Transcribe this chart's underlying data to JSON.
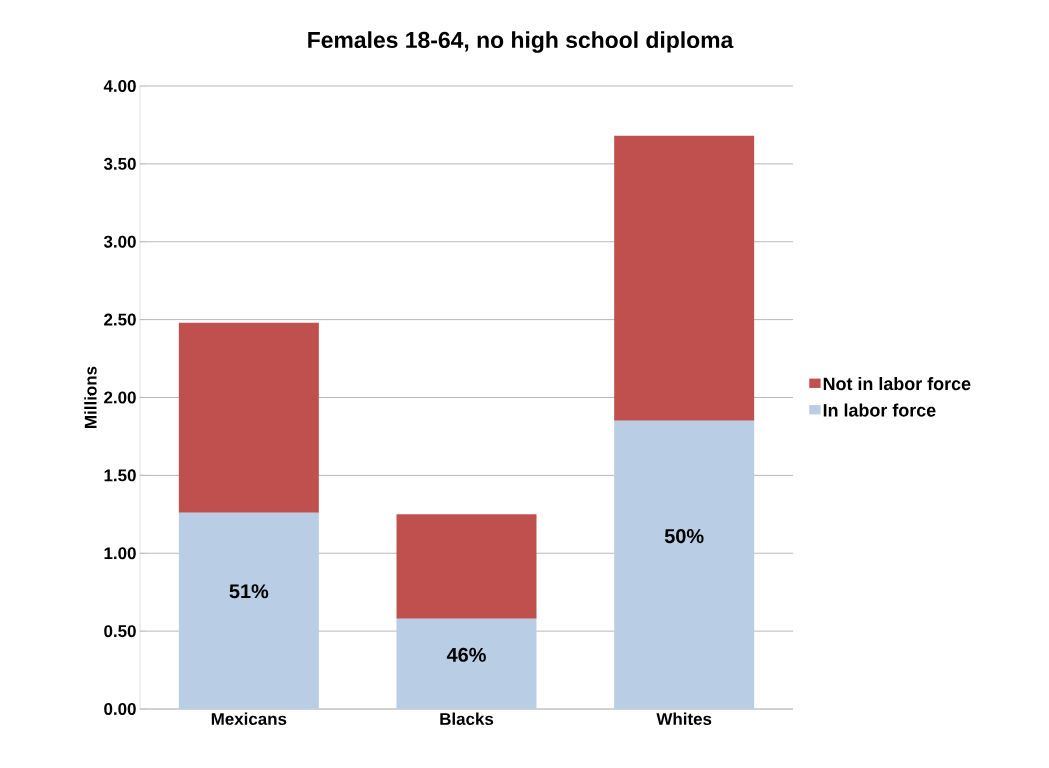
{
  "chart_data": {
    "type": "bar",
    "stacked": true,
    "title": "Females 18-64, no high school diploma",
    "ylabel": "Millions",
    "categories": [
      "Mexicans",
      "Blacks",
      "Whites"
    ],
    "series": [
      {
        "name": "In labor force",
        "color": "#b9cde5",
        "values": [
          1.26,
          0.58,
          1.85
        ]
      },
      {
        "name": "Not in labor force",
        "color": "#c0504d",
        "values": [
          1.22,
          0.67,
          1.83
        ]
      }
    ],
    "ylim": [
      0,
      4
    ],
    "yticks": [
      {
        "value": 0,
        "label": "0.00"
      },
      {
        "value": 0.5,
        "label": "0.50"
      },
      {
        "value": 1,
        "label": "1.00"
      },
      {
        "value": 1.5,
        "label": "1.50"
      },
      {
        "value": 2,
        "label": "2.00"
      },
      {
        "value": 2.5,
        "label": "2.50"
      },
      {
        "value": 3,
        "label": "3.00"
      },
      {
        "value": 3.5,
        "label": "3.50"
      },
      {
        "value": 4,
        "label": "4.00"
      }
    ],
    "grid": "y",
    "legend": "right",
    "annotations": [
      "51%",
      "46%",
      "50%"
    ]
  }
}
